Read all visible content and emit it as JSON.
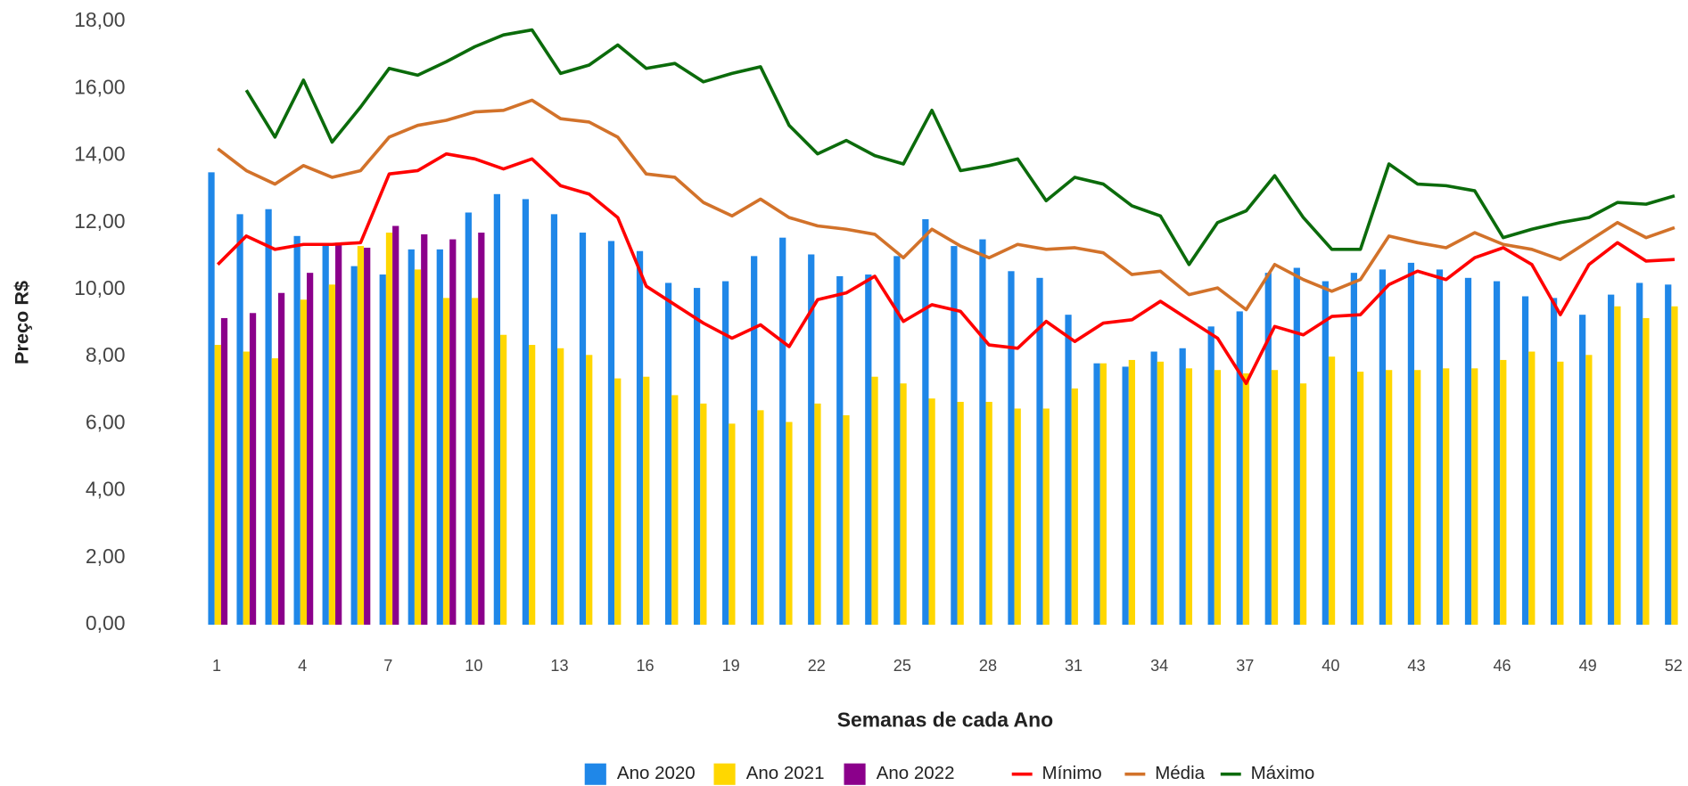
{
  "chart_data": {
    "type": "bar",
    "x_label": "Semanas de cada Ano",
    "y_label": "Preço R$",
    "categories": [
      "1",
      null,
      null,
      "4",
      null,
      null,
      "7",
      null,
      null,
      "10",
      null,
      null,
      "13",
      null,
      null,
      "16",
      null,
      null,
      "19",
      null,
      null,
      "22",
      null,
      null,
      "25",
      null,
      null,
      "28",
      null,
      null,
      "31",
      null,
      null,
      "34",
      null,
      null,
      "37",
      null,
      null,
      "40",
      null,
      null,
      "43",
      null,
      null,
      "46",
      null,
      null,
      "49",
      null,
      null,
      "52"
    ],
    "ylim": [
      0,
      18
    ],
    "yticks": [
      {
        "value": 0,
        "label": "0,00"
      },
      {
        "value": 2,
        "label": "2,00"
      },
      {
        "value": 4,
        "label": "4,00"
      },
      {
        "value": 6,
        "label": "6,00"
      },
      {
        "value": 8,
        "label": "8,00"
      },
      {
        "value": 10,
        "label": "10,00"
      },
      {
        "value": 12,
        "label": "12,00"
      },
      {
        "value": 14,
        "label": "14,00"
      },
      {
        "value": 16,
        "label": "16,00"
      },
      {
        "value": 18,
        "label": "18,00"
      }
    ],
    "grid": false,
    "legend": "bottom",
    "series": [
      {
        "name": "Ano 2020",
        "type": "bar",
        "color": "#1f87e8",
        "values": [
          13.5,
          12.25,
          12.4,
          11.6,
          11.35,
          10.7,
          10.45,
          11.2,
          11.2,
          12.3,
          12.85,
          12.7,
          12.25,
          11.7,
          11.45,
          11.15,
          10.2,
          10.05,
          10.25,
          11.0,
          11.55,
          11.05,
          10.4,
          10.45,
          11.0,
          12.1,
          11.3,
          11.5,
          10.55,
          10.35,
          9.25,
          7.8,
          7.7,
          8.15,
          8.25,
          8.9,
          9.35,
          10.5,
          10.65,
          10.25,
          10.5,
          10.6,
          10.8,
          10.6,
          10.35,
          10.25,
          9.8,
          9.75,
          9.25,
          9.85,
          10.2,
          10.15
        ]
      },
      {
        "name": "Ano 2021",
        "type": "bar",
        "color": "#ffd700",
        "values": [
          8.35,
          8.15,
          7.95,
          9.7,
          10.15,
          11.3,
          11.7,
          10.6,
          9.75,
          9.75,
          8.65,
          8.35,
          8.25,
          8.05,
          7.35,
          7.4,
          6.85,
          6.6,
          6.0,
          6.4,
          6.05,
          6.6,
          6.25,
          7.4,
          7.2,
          6.75,
          6.65,
          6.65,
          6.45,
          6.45,
          7.05,
          7.8,
          7.9,
          7.85,
          7.65,
          7.6,
          7.5,
          7.6,
          7.2,
          8.0,
          7.55,
          7.6,
          7.6,
          7.65,
          7.65,
          7.9,
          8.15,
          7.85,
          8.05,
          9.5,
          9.15,
          9.5
        ]
      },
      {
        "name": "Ano 2022",
        "type": "bar",
        "color": "#8b008b",
        "values": [
          9.15,
          9.3,
          9.9,
          10.5,
          11.4,
          11.25,
          11.9,
          11.65,
          11.5,
          11.7,
          null,
          null,
          null,
          null,
          null,
          null,
          null,
          null,
          null,
          null,
          null,
          null,
          null,
          null,
          null,
          null,
          null,
          null,
          null,
          null,
          null,
          null,
          null,
          null,
          null,
          null,
          null,
          null,
          null,
          null,
          null,
          null,
          null,
          null,
          null,
          null,
          null,
          null,
          null,
          null,
          null,
          null
        ]
      },
      {
        "name": "Mínimo",
        "type": "line",
        "color": "#ff0000",
        "values": [
          10.75,
          11.6,
          11.2,
          11.35,
          11.35,
          11.4,
          13.45,
          13.55,
          14.05,
          13.9,
          13.6,
          13.9,
          13.1,
          12.85,
          12.15,
          10.1,
          9.55,
          9.0,
          8.55,
          8.95,
          8.3,
          9.7,
          9.9,
          10.4,
          9.05,
          9.55,
          9.35,
          8.35,
          8.25,
          9.05,
          8.45,
          9.0,
          9.1,
          9.65,
          9.1,
          8.55,
          7.2,
          8.9,
          8.65,
          9.2,
          9.25,
          10.15,
          10.55,
          10.3,
          10.95,
          11.25,
          10.75,
          9.25,
          10.75,
          11.4,
          10.85,
          10.9
        ]
      },
      {
        "name": "Média",
        "type": "line",
        "color": "#d2722a",
        "values": [
          14.2,
          13.55,
          13.15,
          13.7,
          13.35,
          13.55,
          14.55,
          14.9,
          15.05,
          15.3,
          15.35,
          15.65,
          15.1,
          15.0,
          14.55,
          13.45,
          13.35,
          12.6,
          12.2,
          12.7,
          12.15,
          11.9,
          11.8,
          11.65,
          10.95,
          11.8,
          11.3,
          10.95,
          11.35,
          11.2,
          11.25,
          11.1,
          10.45,
          10.55,
          9.85,
          10.05,
          9.4,
          10.75,
          10.3,
          9.95,
          10.3,
          11.6,
          11.4,
          11.25,
          11.7,
          11.35,
          11.2,
          10.9,
          11.45,
          12.0,
          11.55,
          11.85
        ]
      },
      {
        "name": "Máximo",
        "type": "line",
        "color": "#0b6b0b",
        "values": [
          null,
          15.95,
          14.55,
          16.25,
          14.4,
          15.45,
          16.6,
          16.4,
          16.8,
          17.25,
          17.6,
          17.75,
          16.45,
          16.7,
          17.3,
          16.6,
          16.75,
          16.2,
          16.45,
          16.65,
          14.9,
          14.05,
          14.45,
          14.0,
          13.75,
          15.35,
          13.55,
          13.7,
          13.9,
          12.65,
          13.35,
          13.15,
          12.5,
          12.2,
          10.75,
          12.0,
          12.35,
          13.4,
          12.15,
          11.2,
          11.2,
          13.75,
          13.15,
          13.1,
          12.95,
          11.55,
          11.8,
          12.0,
          12.15,
          12.6,
          12.55,
          12.8
        ]
      }
    ]
  }
}
